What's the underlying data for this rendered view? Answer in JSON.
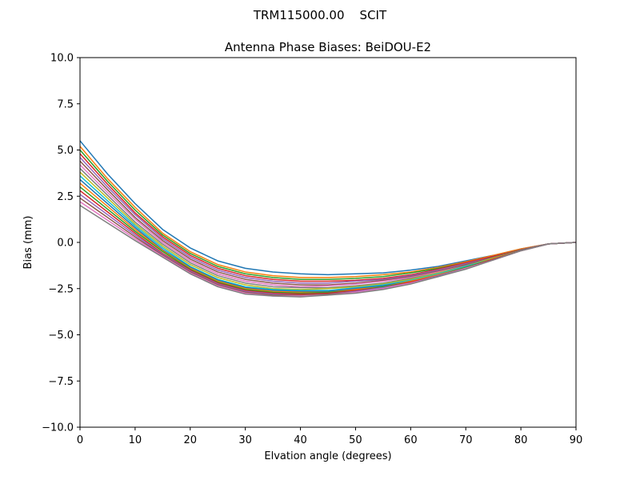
{
  "figure": {
    "suptitle": "TRM115000.00    SCIT"
  },
  "chart_data": {
    "type": "line",
    "title": "Antenna Phase Biases: BeiDOU-E2",
    "xlabel": "Elvation angle (degrees)",
    "ylabel": "Bias (mm)",
    "xlim": [
      0,
      90
    ],
    "ylim": [
      -10,
      10
    ],
    "xticks": [
      0,
      10,
      20,
      30,
      40,
      50,
      60,
      70,
      80,
      90
    ],
    "xtick_labels": [
      "0",
      "10",
      "20",
      "30",
      "40",
      "50",
      "60",
      "70",
      "80",
      "90"
    ],
    "yticks": [
      10,
      7.5,
      5,
      2.5,
      0,
      -2.5,
      -5,
      -7.5,
      -10
    ],
    "ytick_labels": [
      "10.0",
      "7.5",
      "5.0",
      "2.5",
      "0.0",
      "−2.5",
      "−5.0",
      "−7.5",
      "−10.0"
    ],
    "grid": false,
    "legend": "none",
    "x": [
      0,
      5,
      10,
      15,
      20,
      25,
      30,
      35,
      40,
      45,
      50,
      55,
      60,
      65,
      70,
      75,
      80,
      85,
      90
    ],
    "colors": [
      "#1f77b4",
      "#ff7f0e",
      "#2ca02c",
      "#d62728",
      "#9467bd",
      "#8c564b",
      "#e377c2",
      "#7f7f7f",
      "#bcbd22",
      "#17becf"
    ],
    "series": [
      {
        "values": [
          5.5,
          3.7,
          2.1,
          0.7,
          -0.3,
          -1.0,
          -1.4,
          -1.6,
          -1.7,
          -1.75,
          -1.7,
          -1.65,
          -1.5,
          -1.3,
          -1.0,
          -0.7,
          -0.35,
          -0.08,
          0.0
        ]
      },
      {
        "values": [
          5.2,
          3.45,
          1.9,
          0.5,
          -0.5,
          -1.2,
          -1.6,
          -1.8,
          -1.9,
          -1.9,
          -1.85,
          -1.75,
          -1.6,
          -1.35,
          -1.05,
          -0.7,
          -0.35,
          -0.08,
          0.0
        ]
      },
      {
        "values": [
          5.0,
          3.3,
          1.75,
          0.4,
          -0.6,
          -1.3,
          -1.7,
          -1.9,
          -2.0,
          -2.0,
          -1.95,
          -1.85,
          -1.65,
          -1.4,
          -1.1,
          -0.75,
          -0.4,
          -0.08,
          0.0
        ]
      },
      {
        "values": [
          4.8,
          3.15,
          1.6,
          0.3,
          -0.7,
          -1.4,
          -1.8,
          -2.0,
          -2.1,
          -2.1,
          -2.05,
          -1.95,
          -1.75,
          -1.45,
          -1.1,
          -0.75,
          -0.4,
          -0.08,
          0.0
        ]
      },
      {
        "values": [
          4.6,
          3.0,
          1.5,
          0.2,
          -0.8,
          -1.5,
          -1.9,
          -2.1,
          -2.2,
          -2.2,
          -2.1,
          -2.0,
          -1.8,
          -1.5,
          -1.15,
          -0.8,
          -0.4,
          -0.08,
          0.0
        ]
      },
      {
        "values": [
          4.4,
          2.85,
          1.35,
          0.1,
          -0.9,
          -1.6,
          -2.0,
          -2.2,
          -2.3,
          -2.3,
          -2.2,
          -2.05,
          -1.85,
          -1.55,
          -1.2,
          -0.8,
          -0.4,
          -0.08,
          0.0
        ]
      },
      {
        "values": [
          4.2,
          2.7,
          1.25,
          0.0,
          -1.0,
          -1.7,
          -2.1,
          -2.3,
          -2.4,
          -2.35,
          -2.25,
          -2.1,
          -1.9,
          -1.6,
          -1.25,
          -0.85,
          -0.45,
          -0.08,
          0.0
        ]
      },
      {
        "values": [
          4.0,
          2.55,
          1.1,
          -0.1,
          -1.1,
          -1.8,
          -2.2,
          -2.4,
          -2.45,
          -2.45,
          -2.35,
          -2.2,
          -1.95,
          -1.65,
          -1.25,
          -0.85,
          -0.45,
          -0.08,
          0.0
        ]
      },
      {
        "values": [
          3.8,
          2.4,
          1.0,
          -0.2,
          -1.2,
          -1.9,
          -2.3,
          -2.5,
          -2.55,
          -2.5,
          -2.4,
          -2.25,
          -2.0,
          -1.65,
          -1.3,
          -0.85,
          -0.45,
          -0.08,
          0.0
        ]
      },
      {
        "values": [
          3.6,
          2.25,
          0.9,
          -0.3,
          -1.3,
          -2.0,
          -2.4,
          -2.55,
          -2.6,
          -2.6,
          -2.45,
          -2.3,
          -2.05,
          -1.7,
          -1.3,
          -0.9,
          -0.45,
          -0.08,
          0.0
        ]
      },
      {
        "values": [
          3.4,
          2.1,
          0.8,
          -0.4,
          -1.35,
          -2.05,
          -2.45,
          -2.6,
          -2.65,
          -2.65,
          -2.5,
          -2.35,
          -2.1,
          -1.75,
          -1.35,
          -0.9,
          -0.45,
          -0.08,
          0.0
        ]
      },
      {
        "values": [
          3.2,
          1.95,
          0.7,
          -0.45,
          -1.4,
          -2.1,
          -2.5,
          -2.65,
          -2.7,
          -2.7,
          -2.55,
          -2.4,
          -2.1,
          -1.75,
          -1.35,
          -0.9,
          -0.45,
          -0.08,
          0.0
        ]
      },
      {
        "values": [
          3.0,
          1.8,
          0.6,
          -0.5,
          -1.45,
          -2.15,
          -2.55,
          -2.7,
          -2.75,
          -2.7,
          -2.6,
          -2.4,
          -2.15,
          -1.8,
          -1.35,
          -0.9,
          -0.45,
          -0.08,
          0.0
        ]
      },
      {
        "values": [
          2.8,
          1.65,
          0.5,
          -0.6,
          -1.5,
          -2.2,
          -2.6,
          -2.75,
          -2.8,
          -2.75,
          -2.6,
          -2.45,
          -2.15,
          -1.8,
          -1.4,
          -0.9,
          -0.45,
          -0.08,
          0.0
        ]
      },
      {
        "values": [
          2.6,
          1.5,
          0.4,
          -0.65,
          -1.55,
          -2.25,
          -2.65,
          -2.8,
          -2.85,
          -2.8,
          -2.65,
          -2.45,
          -2.2,
          -1.8,
          -1.4,
          -0.95,
          -0.45,
          -0.08,
          0.0
        ]
      },
      {
        "values": [
          2.4,
          1.35,
          0.3,
          -0.7,
          -1.6,
          -2.3,
          -2.7,
          -2.85,
          -2.85,
          -2.8,
          -2.7,
          -2.5,
          -2.2,
          -1.85,
          -1.4,
          -0.95,
          -0.45,
          -0.08,
          0.0
        ]
      },
      {
        "values": [
          2.2,
          1.2,
          0.2,
          -0.75,
          -1.65,
          -2.35,
          -2.75,
          -2.9,
          -2.9,
          -2.85,
          -2.7,
          -2.5,
          -2.2,
          -1.85,
          -1.4,
          -0.95,
          -0.45,
          -0.08,
          0.0
        ]
      },
      {
        "values": [
          2.0,
          1.05,
          0.1,
          -0.8,
          -1.7,
          -2.4,
          -2.8,
          -2.9,
          -2.95,
          -2.85,
          -2.75,
          -2.55,
          -2.25,
          -1.85,
          -1.45,
          -0.95,
          -0.45,
          -0.08,
          0.0
        ]
      }
    ]
  }
}
